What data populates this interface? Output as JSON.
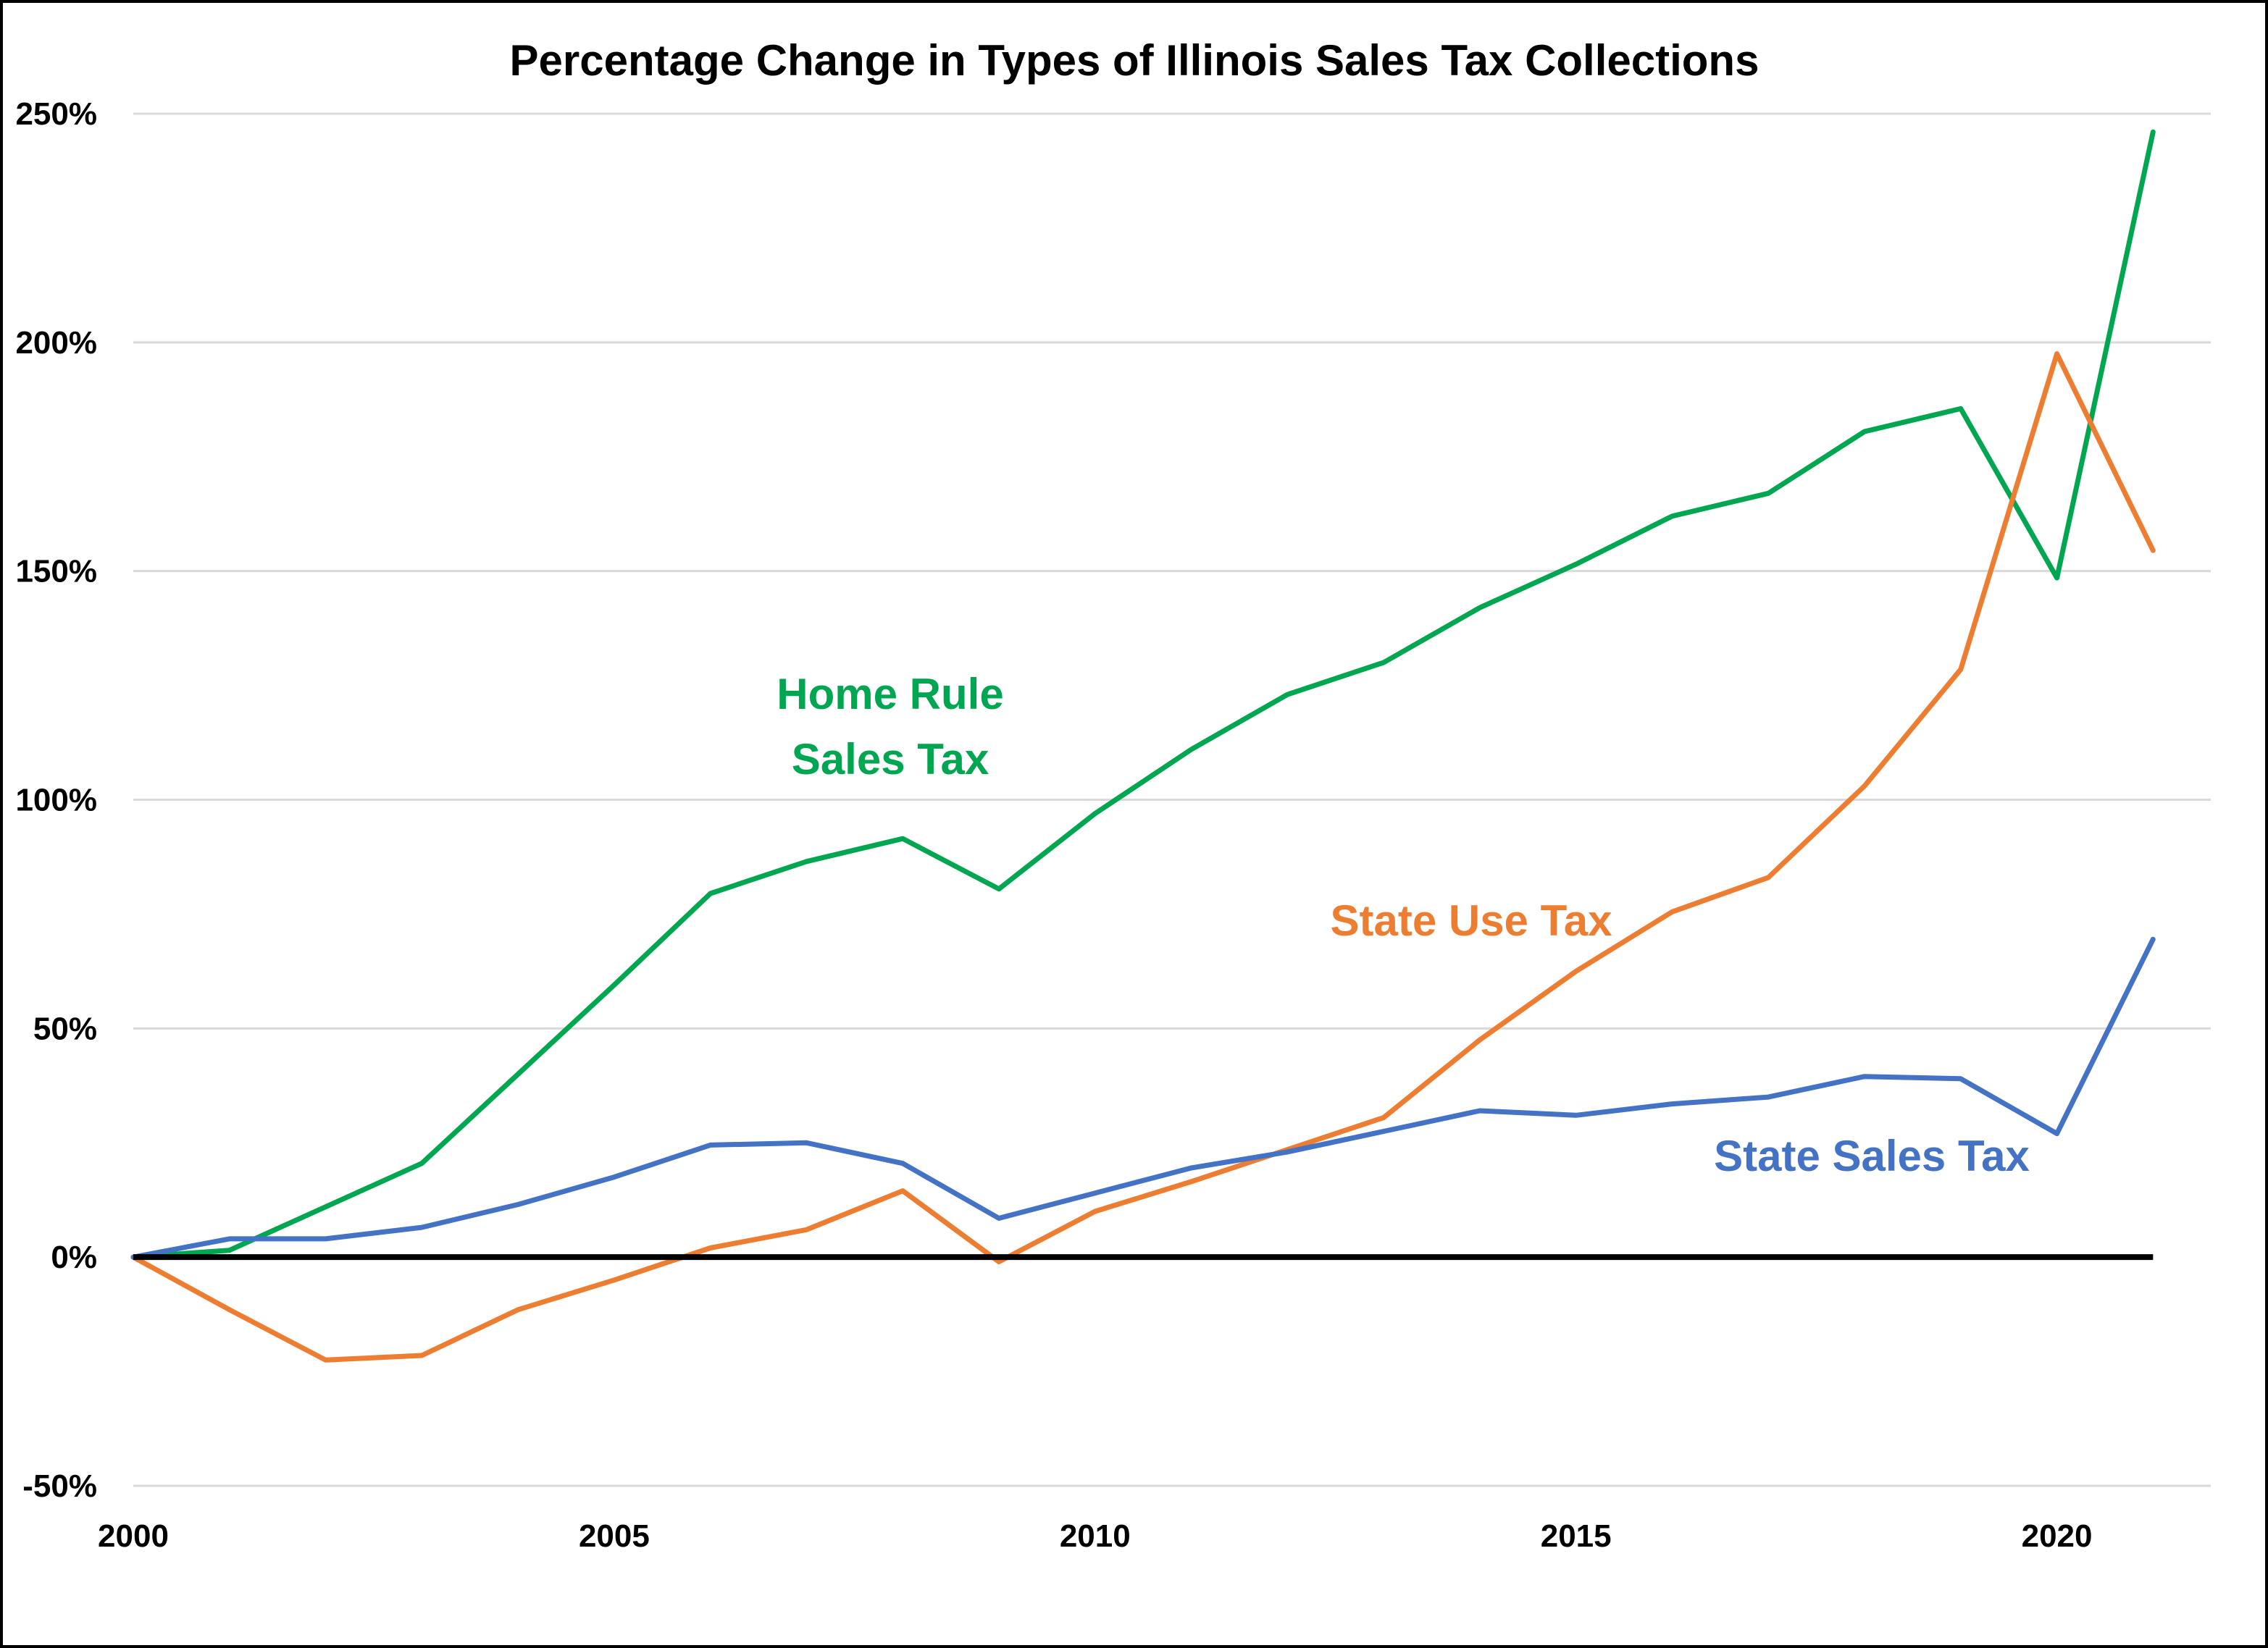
{
  "chart_data": {
    "type": "line",
    "title": "Percentage Change in Types of Illinois Sales Tax Collections",
    "xlabel": "",
    "ylabel": "",
    "x": [
      2000,
      2001,
      2002,
      2003,
      2004,
      2005,
      2006,
      2007,
      2008,
      2009,
      2010,
      2011,
      2012,
      2013,
      2014,
      2015,
      2016,
      2017,
      2018,
      2019,
      2020,
      2021
    ],
    "xlim": [
      2000,
      2021.6
    ],
    "ylim": [
      -50,
      250
    ],
    "x_ticks": [
      {
        "value": 2000,
        "label": "2000"
      },
      {
        "value": 2005,
        "label": "2005"
      },
      {
        "value": 2010,
        "label": "2010"
      },
      {
        "value": 2015,
        "label": "2015"
      },
      {
        "value": 2020,
        "label": "2020"
      }
    ],
    "y_ticks": [
      {
        "value": 250,
        "label": "250%"
      },
      {
        "value": 200,
        "label": "200%"
      },
      {
        "value": 150,
        "label": "150%"
      },
      {
        "value": 100,
        "label": "100%"
      },
      {
        "value": 50,
        "label": "50%"
      },
      {
        "value": 0,
        "label": "0%"
      },
      {
        "value": -50,
        "label": "-50%"
      }
    ],
    "grid": true,
    "legend": "none",
    "zero_line": true,
    "series": [
      {
        "name": "Home Rule Sales Tax",
        "label_lines": [
          "Home Rule",
          "Sales Tax"
        ],
        "color": "#00A650",
        "values": [
          0,
          1.5,
          11,
          20.5,
          40,
          59.5,
          79.5,
          86.5,
          91.5,
          80.5,
          97,
          111,
          123,
          130,
          142,
          151.5,
          162,
          167,
          180.5,
          185.5,
          148.5,
          246
        ]
      },
      {
        "name": "State Use Tax",
        "label_lines": [
          "State Use Tax"
        ],
        "color": "#ED7D31",
        "values": [
          0,
          -11.5,
          -22.5,
          -21.5,
          -11.5,
          -5,
          2,
          6,
          14.5,
          -1,
          10,
          16.5,
          23.5,
          30.5,
          47.5,
          62.5,
          75.5,
          83,
          103,
          128.5,
          197.5,
          154.5
        ]
      },
      {
        "name": "State Sales Tax",
        "label_lines": [
          "State Sales Tax"
        ],
        "color": "#4472C4",
        "values": [
          0,
          4,
          4,
          6.5,
          11.5,
          17.5,
          24.5,
          25,
          20.5,
          8.5,
          14,
          19.5,
          23,
          27.5,
          32,
          31,
          33.5,
          35,
          39.5,
          39,
          27,
          69.5
        ]
      }
    ]
  }
}
